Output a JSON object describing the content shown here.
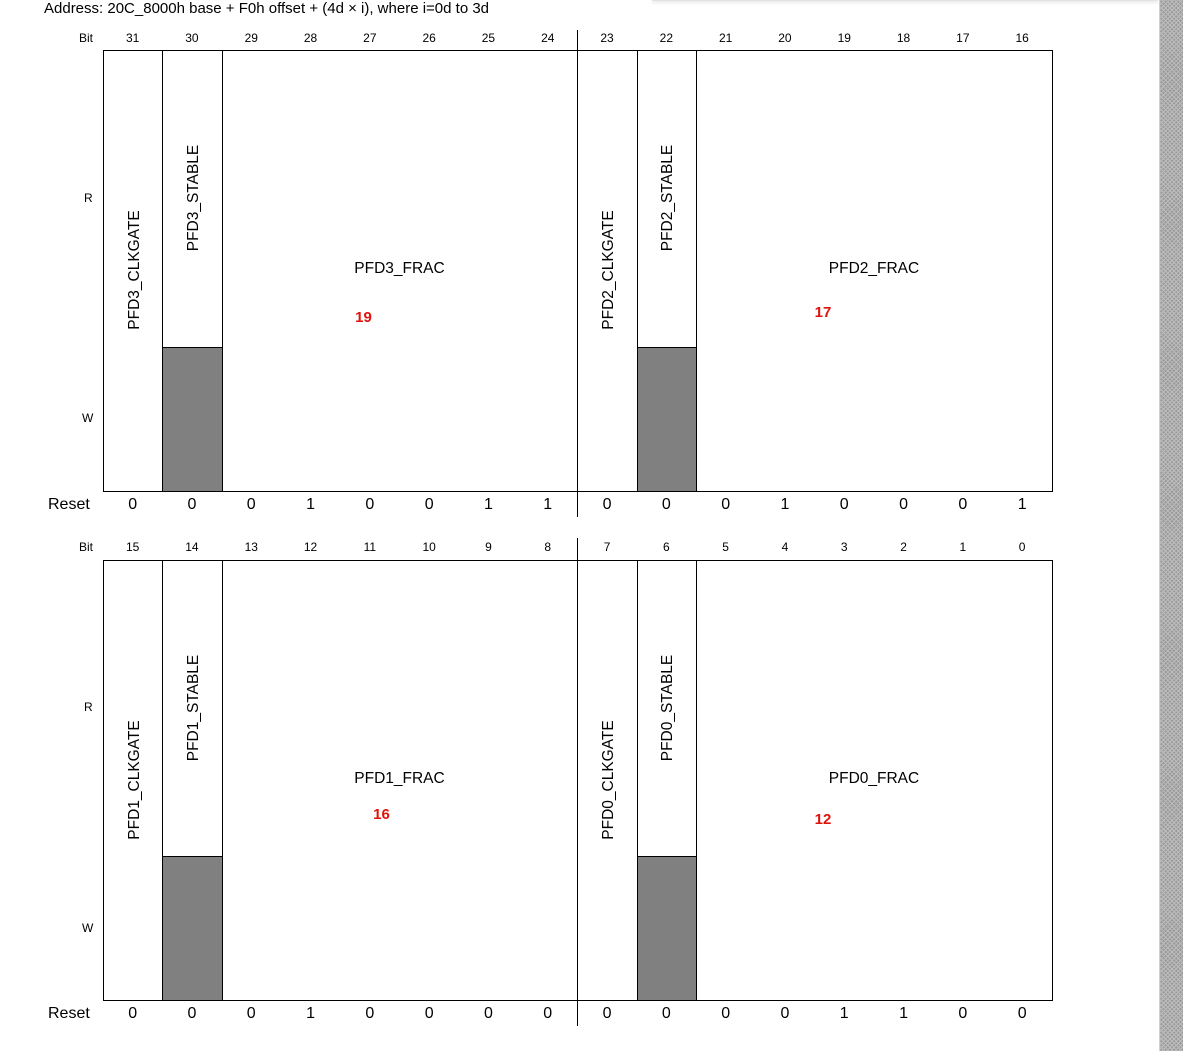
{
  "address": "Address: 20C_8000h base + F0h offset + (4d × i), where i=0d to 3d",
  "labels": {
    "bit": "Bit",
    "read": "R",
    "write": "W",
    "reset": "Reset"
  },
  "rows": [
    {
      "bits": [
        "31",
        "30",
        "29",
        "28",
        "27",
        "26",
        "25",
        "24",
        "23",
        "22",
        "21",
        "20",
        "19",
        "18",
        "17",
        "16"
      ],
      "reset": [
        "0",
        "0",
        "0",
        "1",
        "0",
        "0",
        "1",
        "1",
        "0",
        "0",
        "0",
        "1",
        "0",
        "0",
        "0",
        "1"
      ],
      "fields": [
        {
          "name": "PFD3_CLKGATE",
          "orientation": "vertical",
          "span": [
            0,
            0
          ],
          "write_only_read": false
        },
        {
          "name": "PFD3_STABLE",
          "orientation": "vertical",
          "span": [
            1,
            1
          ],
          "read_only": true
        },
        {
          "name": "PFD3_FRAC",
          "orientation": "horizontal",
          "span": [
            2,
            7
          ],
          "annotation": "19"
        },
        {
          "name": "PFD2_CLKGATE",
          "orientation": "vertical",
          "span": [
            8,
            8
          ]
        },
        {
          "name": "PFD2_STABLE",
          "orientation": "vertical",
          "span": [
            9,
            9
          ],
          "read_only": true
        },
        {
          "name": "PFD2_FRAC",
          "orientation": "horizontal",
          "span": [
            10,
            15
          ],
          "annotation": "17"
        }
      ]
    },
    {
      "bits": [
        "15",
        "14",
        "13",
        "12",
        "11",
        "10",
        "9",
        "8",
        "7",
        "6",
        "5",
        "4",
        "3",
        "2",
        "1",
        "0"
      ],
      "reset": [
        "0",
        "0",
        "0",
        "1",
        "0",
        "0",
        "0",
        "0",
        "0",
        "0",
        "0",
        "0",
        "1",
        "1",
        "0",
        "0"
      ],
      "fields": [
        {
          "name": "PFD1_CLKGATE",
          "orientation": "vertical",
          "span": [
            0,
            0
          ]
        },
        {
          "name": "PFD1_STABLE",
          "orientation": "vertical",
          "span": [
            1,
            1
          ],
          "read_only": true
        },
        {
          "name": "PFD1_FRAC",
          "orientation": "horizontal",
          "span": [
            2,
            7
          ],
          "annotation": "16"
        },
        {
          "name": "PFD0_CLKGATE",
          "orientation": "vertical",
          "span": [
            8,
            8
          ]
        },
        {
          "name": "PFD0_STABLE",
          "orientation": "vertical",
          "span": [
            9,
            9
          ],
          "read_only": true
        },
        {
          "name": "PFD0_FRAC",
          "orientation": "horizontal",
          "span": [
            10,
            15
          ],
          "annotation": "12"
        }
      ]
    }
  ]
}
